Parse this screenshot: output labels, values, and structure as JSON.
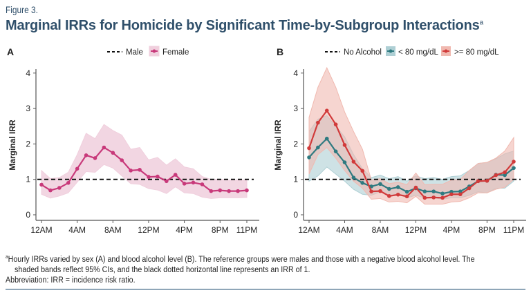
{
  "figure": {
    "label": "Figure 3.",
    "title": "Marginal IRRs for Homicide by Significant Time-by-Subgroup Interactions",
    "title_superscript": "a"
  },
  "footnote": {
    "superscript": "a",
    "line1": "Hourly IRRs varied by sex (A) and blood alcohol level (B). The reference groups were males and those with a negative blood alcohol level. The",
    "line2": "shaded bands reflect 95% CIs, and the black dotted horizontal line represents an IRR of 1.",
    "abbreviation": "Abbreviation: IRR = incidence risk ratio."
  },
  "colors": {
    "title": "#2f4f6a",
    "female": "#c8397a",
    "female_band": "#f0cfdd",
    "low_bac": "#2e7a80",
    "low_bac_band": "#aecfd4",
    "high_bac": "#d13a3a",
    "high_bac_band": "#f0b9b0",
    "reference": "#111111",
    "rule": "#8fa6b8"
  },
  "chart_data": [
    {
      "type": "line",
      "panel": "A",
      "title": "",
      "xlabel": "",
      "ylabel": "Marginal IRR",
      "ylim": [
        0,
        4
      ],
      "yticks": [
        "0",
        "1",
        "2",
        "3",
        "4"
      ],
      "xlim": [
        0,
        23
      ],
      "xticks": [
        {
          "hour": 0,
          "label": "12AM"
        },
        {
          "hour": 4,
          "label": "4AM"
        },
        {
          "hour": 8,
          "label": "8AM"
        },
        {
          "hour": 12,
          "label": "12PM"
        },
        {
          "hour": 16,
          "label": "4PM"
        },
        {
          "hour": 20,
          "label": "8PM"
        },
        {
          "hour": 23,
          "label": "11PM"
        }
      ],
      "x": [
        0,
        1,
        2,
        3,
        4,
        5,
        6,
        7,
        8,
        9,
        10,
        11,
        12,
        13,
        14,
        15,
        16,
        17,
        18,
        19,
        20,
        21,
        22,
        23
      ],
      "reference_line": {
        "name": "Male",
        "value": 1
      },
      "legend": [
        "Male",
        "Female"
      ],
      "legend_position": "top-center",
      "series": [
        {
          "name": "Female",
          "color_key": "female",
          "values": [
            0.85,
            0.69,
            0.76,
            0.9,
            1.3,
            1.68,
            1.6,
            1.9,
            1.75,
            1.54,
            1.25,
            1.27,
            1.07,
            1.08,
            0.95,
            1.13,
            0.88,
            0.91,
            0.86,
            0.67,
            0.69,
            0.67,
            0.67,
            0.69
          ],
          "ci_upper": [
            1.25,
            1.02,
            1.05,
            1.2,
            1.7,
            2.3,
            2.15,
            2.55,
            2.38,
            2.25,
            1.85,
            1.9,
            1.55,
            1.62,
            1.4,
            1.58,
            1.35,
            1.3,
            1.08,
            1.0,
            1.0,
            0.98,
            0.98,
            0.98
          ],
          "ci_lower": [
            0.58,
            0.47,
            0.53,
            0.62,
            0.92,
            1.22,
            1.2,
            1.42,
            1.32,
            1.1,
            0.88,
            0.86,
            0.74,
            0.7,
            0.6,
            0.79,
            0.62,
            0.6,
            0.5,
            0.46,
            0.48,
            0.48,
            0.48,
            0.49
          ]
        }
      ]
    },
    {
      "type": "line",
      "panel": "B",
      "title": "",
      "xlabel": "",
      "ylabel": "Marginal IRR",
      "ylim": [
        0,
        4
      ],
      "yticks": [
        "0",
        "1",
        "2",
        "3",
        "4"
      ],
      "xlim": [
        0,
        23
      ],
      "xticks": [
        {
          "hour": 0,
          "label": "12AM"
        },
        {
          "hour": 4,
          "label": "4AM"
        },
        {
          "hour": 8,
          "label": "8AM"
        },
        {
          "hour": 12,
          "label": "12PM"
        },
        {
          "hour": 16,
          "label": "4PM"
        },
        {
          "hour": 20,
          "label": "8PM"
        },
        {
          "hour": 23,
          "label": "11PM"
        }
      ],
      "x": [
        0,
        1,
        2,
        3,
        4,
        5,
        6,
        7,
        8,
        9,
        10,
        11,
        12,
        13,
        14,
        15,
        16,
        17,
        18,
        19,
        20,
        21,
        22,
        23
      ],
      "reference_line": {
        "name": "No Alcohol",
        "value": 1
      },
      "legend": [
        "No Alcohol",
        "< 80 mg/dL",
        ">= 80 mg/dL"
      ],
      "legend_position": "top-center",
      "series": [
        {
          "name": "< 80 mg/dL",
          "color_key": "low_bac",
          "values": [
            1.62,
            1.9,
            2.15,
            1.79,
            1.48,
            1.05,
            0.9,
            0.8,
            0.87,
            0.73,
            0.78,
            0.65,
            0.75,
            0.66,
            0.66,
            0.6,
            0.65,
            0.66,
            0.8,
            0.95,
            0.96,
            1.13,
            1.12,
            1.32
          ],
          "ci_upper": [
            2.35,
            2.7,
            2.8,
            2.5,
            2.2,
            1.7,
            1.3,
            1.05,
            1.12,
            1.02,
            1.08,
            0.95,
            1.1,
            1.02,
            1.05,
            1.0,
            1.08,
            1.1,
            1.25,
            1.45,
            1.48,
            1.58,
            1.72,
            1.8
          ],
          "ci_lower": [
            0.95,
            1.1,
            1.35,
            1.15,
            0.95,
            0.72,
            0.58,
            0.55,
            0.65,
            0.55,
            0.58,
            0.48,
            0.55,
            0.48,
            0.48,
            0.44,
            0.48,
            0.48,
            0.55,
            0.65,
            0.62,
            0.75,
            0.75,
            0.95
          ]
        },
        {
          "name": ">= 80 mg/dL",
          "color_key": "high_bac",
          "values": [
            1.88,
            2.6,
            2.94,
            2.55,
            1.97,
            1.5,
            1.24,
            0.66,
            0.67,
            0.53,
            0.57,
            0.52,
            0.77,
            0.48,
            0.49,
            0.48,
            0.58,
            0.58,
            0.75,
            0.95,
            0.96,
            1.12,
            1.2,
            1.5
          ],
          "ci_upper": [
            2.75,
            3.6,
            4.15,
            3.6,
            2.9,
            2.35,
            1.85,
            0.98,
            1.02,
            0.88,
            0.92,
            0.85,
            1.18,
            0.85,
            0.86,
            0.86,
            0.98,
            1.0,
            1.25,
            1.45,
            1.48,
            1.6,
            1.8,
            2.18
          ],
          "ci_lower": [
            1.15,
            1.7,
            1.9,
            1.6,
            1.25,
            0.95,
            0.75,
            0.44,
            0.46,
            0.36,
            0.38,
            0.34,
            0.52,
            0.3,
            0.3,
            0.3,
            0.36,
            0.38,
            0.48,
            0.62,
            0.62,
            0.72,
            0.78,
            1.0
          ]
        }
      ]
    }
  ]
}
